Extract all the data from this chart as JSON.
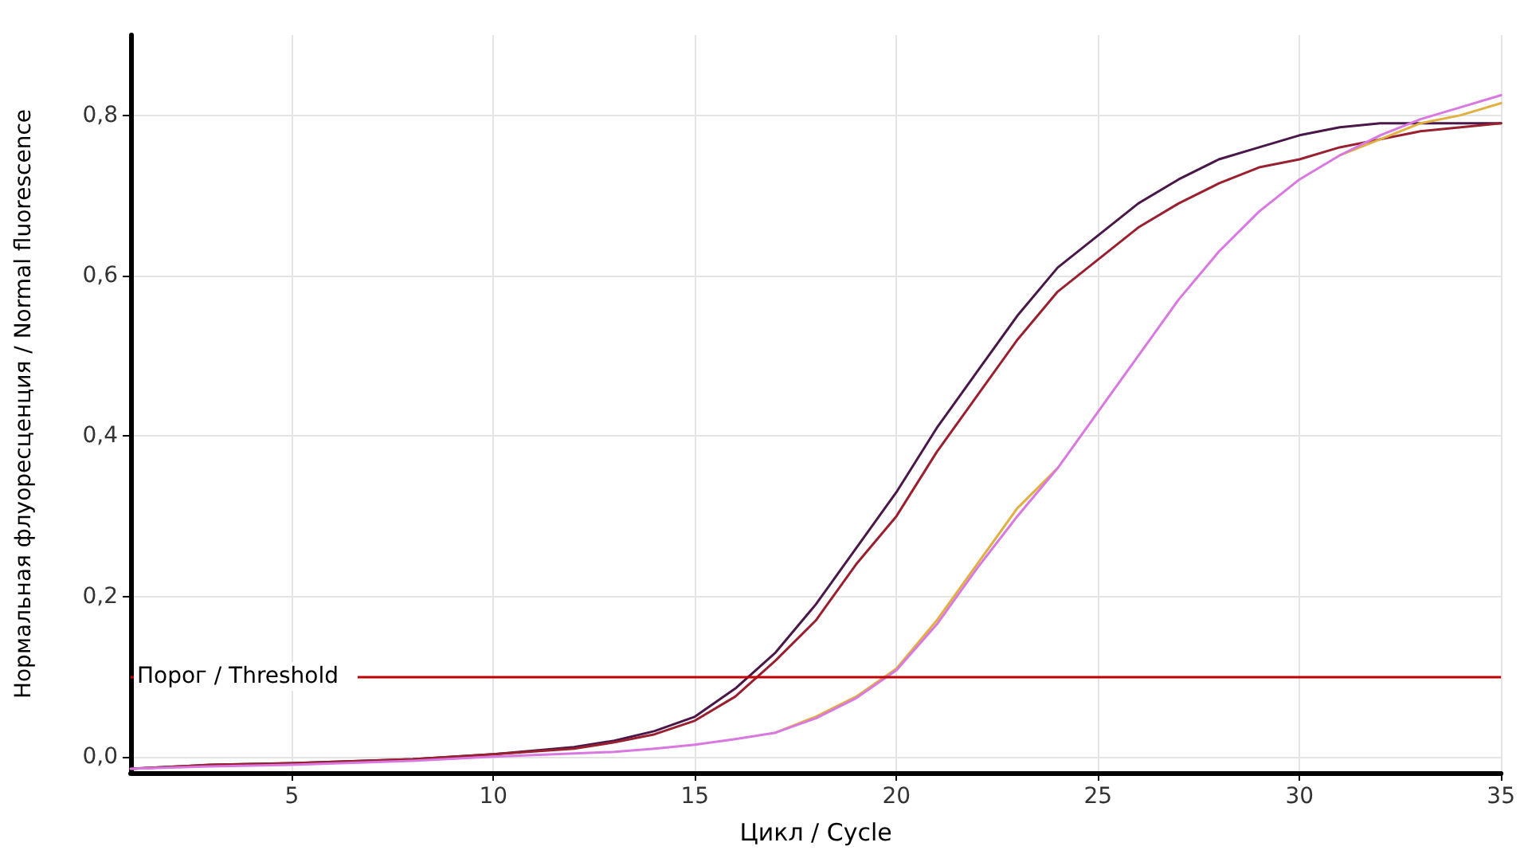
{
  "chart_data": {
    "type": "line",
    "xlabel": "Цикл / Cycle",
    "ylabel": "Нормальная флуоресценция / Normal fluorescence",
    "x": [
      1,
      3,
      5,
      8,
      10,
      12,
      13,
      14,
      15,
      16,
      17,
      18,
      19,
      20,
      21,
      22,
      23,
      24,
      25,
      26,
      27,
      28,
      29,
      30,
      31,
      32,
      33,
      34,
      35
    ],
    "series": [
      {
        "color": "#4a1848",
        "values": [
          -0.015,
          -0.01,
          -0.008,
          -0.003,
          0.003,
          0.012,
          0.02,
          0.032,
          0.05,
          0.085,
          0.13,
          0.19,
          0.26,
          0.33,
          0.41,
          0.48,
          0.55,
          0.61,
          0.65,
          0.69,
          0.72,
          0.745,
          0.76,
          0.775,
          0.785,
          0.79,
          0.79,
          0.79,
          0.79
        ]
      },
      {
        "color": "#9a2030",
        "values": [
          -0.015,
          -0.01,
          -0.008,
          -0.003,
          0.003,
          0.01,
          0.018,
          0.028,
          0.045,
          0.075,
          0.12,
          0.17,
          0.24,
          0.3,
          0.38,
          0.45,
          0.52,
          0.58,
          0.62,
          0.66,
          0.69,
          0.715,
          0.735,
          0.745,
          0.76,
          0.77,
          0.78,
          0.785,
          0.79
        ]
      },
      {
        "color": "#e0b040",
        "values": [
          null,
          null,
          null,
          null,
          null,
          null,
          null,
          null,
          null,
          null,
          0.03,
          0.05,
          0.075,
          0.11,
          0.17,
          0.24,
          0.31,
          0.36,
          null,
          null,
          null,
          null,
          null,
          null,
          0.75,
          0.77,
          0.79,
          0.8,
          0.815
        ]
      },
      {
        "color": "#d878e0",
        "values": [
          -0.015,
          -0.012,
          -0.01,
          -0.005,
          0.0,
          0.004,
          0.006,
          0.01,
          0.015,
          0.022,
          0.03,
          0.048,
          0.073,
          0.108,
          0.165,
          0.235,
          0.3,
          0.36,
          0.43,
          0.5,
          0.57,
          0.63,
          0.68,
          0.72,
          0.75,
          0.775,
          0.795,
          0.81,
          0.825
        ]
      }
    ],
    "xlim": [
      1,
      35
    ],
    "ylim": [
      -0.02,
      0.9
    ],
    "xticks": [
      5,
      10,
      15,
      20,
      25,
      30,
      35
    ],
    "yticks": [
      {
        "value": 0,
        "label": "0,0"
      },
      {
        "value": 0.2,
        "label": "0,2"
      },
      {
        "value": 0.4,
        "label": "0,4"
      },
      {
        "value": 0.6,
        "label": "0,6"
      },
      {
        "value": 0.8,
        "label": "0,8"
      }
    ],
    "ref_lines": [
      {
        "axis": "y",
        "value": 0.1,
        "label": "Порог / Threshold",
        "color": "#c00000"
      }
    ],
    "grid": true,
    "marker": "none",
    "line_style": "solid"
  }
}
